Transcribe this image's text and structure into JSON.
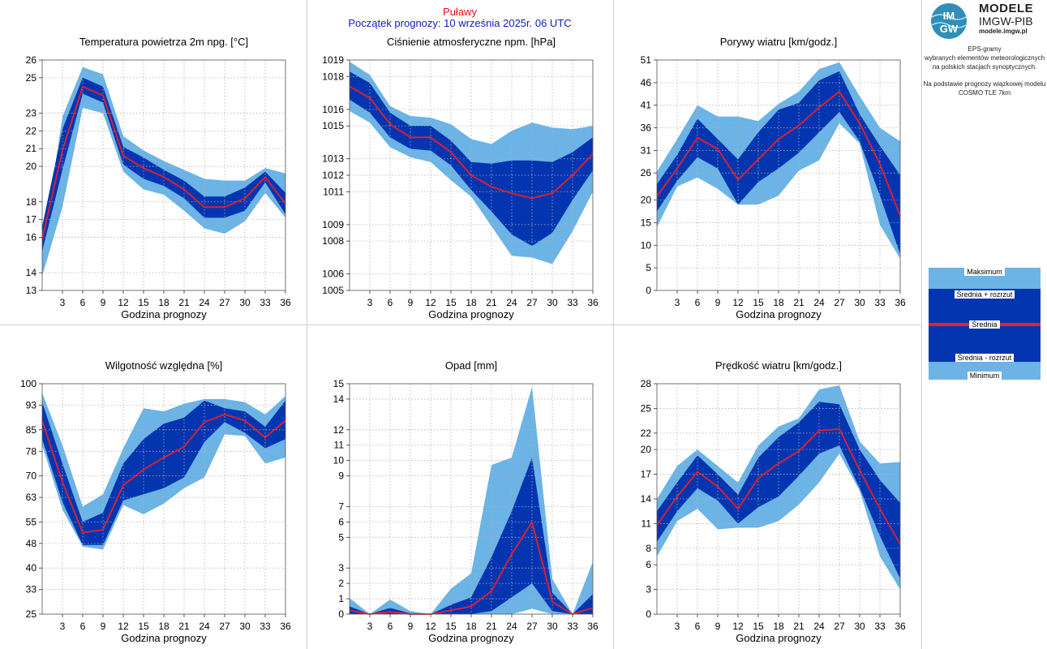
{
  "header": {
    "station": "Puławy",
    "forecast_start": "Początek prognozy: 10 września 2025r. 06 UTC"
  },
  "sidebar": {
    "logo_title": "MODELE",
    "logo_subtitle": "IMGW-PIB",
    "logo_url": "modele.imgw.pl",
    "description_lines": [
      "EPS-gramy",
      "wybranych elementów meteorologicznych",
      "na polskich stacjach  synoptycznych."
    ],
    "model_lines": [
      "Na podstawie prognozy wiązkowej modelu",
      "COSMO TLE 7km"
    ],
    "legend": {
      "maximum": "Maksimum",
      "mean_plus": "Średnia + rozrzut",
      "mean": "Średnia",
      "mean_minus": "Średnia - rozrzut",
      "minimum": "Minimum"
    }
  },
  "colors": {
    "outer_band": "#6cb3e6",
    "inner_band": "#0435b0",
    "mean_line": "#e8202a",
    "grid": "#b0b0b0",
    "frame": "#cfcfcf"
  },
  "chart_data": [
    {
      "type": "area",
      "title": "Temperatura powietrza 2m npg. [°C]",
      "xlabel": "Godzina prognozy",
      "ylim": [
        13,
        26
      ],
      "yticks": [
        13,
        14,
        16,
        17,
        18,
        20,
        21,
        22,
        23,
        25,
        26
      ],
      "xticks": [
        3,
        6,
        9,
        12,
        15,
        18,
        21,
        24,
        27,
        30,
        33,
        36
      ],
      "x": [
        0,
        3,
        6,
        9,
        12,
        15,
        18,
        21,
        24,
        27,
        30,
        33,
        36
      ],
      "series": [
        {
          "role": "max",
          "values": [
            15.2,
            22.8,
            25.6,
            25.2,
            21.7,
            20.9,
            20.3,
            19.8,
            19.3,
            19.2,
            19.2,
            19.9,
            19.6
          ]
        },
        {
          "role": "mean_plus",
          "values": [
            16.6,
            22.1,
            25.0,
            24.5,
            21.1,
            20.5,
            19.8,
            19.2,
            18.3,
            18.3,
            18.8,
            19.7,
            18.5
          ]
        },
        {
          "role": "mean",
          "values": [
            15.9,
            20.9,
            24.5,
            24.0,
            20.6,
            19.9,
            19.4,
            18.7,
            17.7,
            17.7,
            18.2,
            19.4,
            17.9
          ]
        },
        {
          "role": "mean_minus",
          "values": [
            15.2,
            19.8,
            24.1,
            23.6,
            20.1,
            19.3,
            18.9,
            18.2,
            17.1,
            17.1,
            17.5,
            19.1,
            17.3
          ]
        },
        {
          "role": "min",
          "values": [
            13.8,
            17.7,
            23.3,
            23.0,
            19.7,
            18.7,
            18.4,
            17.5,
            16.5,
            16.2,
            16.9,
            18.5,
            17.1
          ]
        }
      ]
    },
    {
      "type": "area",
      "title": "Ciśnienie atmosferyczne npm. [hPa]",
      "xlabel": "Godzina prognozy",
      "ylim": [
        1005,
        1019
      ],
      "yticks": [
        1005,
        1006,
        1008,
        1009,
        1011,
        1012,
        1013,
        1015,
        1016,
        1018,
        1019
      ],
      "xticks": [
        3,
        6,
        9,
        12,
        15,
        18,
        21,
        24,
        27,
        30,
        33,
        36
      ],
      "x": [
        0,
        3,
        6,
        9,
        12,
        15,
        18,
        21,
        24,
        27,
        30,
        33,
        36
      ],
      "series": [
        {
          "role": "max",
          "values": [
            1018.9,
            1018.1,
            1016.2,
            1015.6,
            1015.5,
            1015.1,
            1014.2,
            1013.9,
            1014.7,
            1015.2,
            1014.9,
            1014.8,
            1015.0
          ]
        },
        {
          "role": "mean_plus",
          "values": [
            1018.3,
            1017.6,
            1015.8,
            1015.0,
            1015.0,
            1014.1,
            1012.8,
            1012.7,
            1012.9,
            1012.9,
            1012.8,
            1013.4,
            1014.3
          ]
        },
        {
          "role": "mean",
          "values": [
            1017.4,
            1016.7,
            1015.1,
            1014.3,
            1014.3,
            1013.4,
            1012.0,
            1011.3,
            1010.9,
            1010.6,
            1010.9,
            1012.0,
            1013.3
          ]
        },
        {
          "role": "mean_minus",
          "values": [
            1016.6,
            1015.8,
            1014.3,
            1013.6,
            1013.5,
            1012.6,
            1011.1,
            1009.8,
            1008.4,
            1007.7,
            1008.5,
            1010.5,
            1012.3
          ]
        },
        {
          "role": "min",
          "values": [
            1015.9,
            1015.2,
            1013.7,
            1013.1,
            1012.8,
            1011.7,
            1010.7,
            1008.9,
            1007.1,
            1007.0,
            1006.6,
            1008.6,
            1011.0
          ]
        }
      ]
    },
    {
      "type": "area",
      "title": "Porywy wiatru [km/godz.]",
      "xlabel": "Godzina prognozy",
      "ylim": [
        0,
        51
      ],
      "yticks": [
        0,
        5,
        10,
        15,
        20,
        26,
        31,
        36,
        41,
        46,
        51
      ],
      "xticks": [
        3,
        6,
        9,
        12,
        15,
        18,
        21,
        24,
        27,
        30,
        33,
        36
      ],
      "x": [
        0,
        3,
        6,
        9,
        12,
        15,
        18,
        21,
        24,
        27,
        30,
        33,
        36
      ],
      "series": [
        {
          "role": "max",
          "values": [
            26.3,
            33.5,
            41.0,
            38.5,
            38.5,
            37.5,
            41.3,
            44.0,
            49.0,
            50.5,
            43.0,
            36.0,
            33.0
          ]
        },
        {
          "role": "mean_plus",
          "values": [
            23.5,
            30.0,
            38.0,
            33.5,
            29.0,
            35.0,
            40.0,
            41.5,
            46.5,
            48.5,
            39.0,
            32.0,
            25.5
          ]
        },
        {
          "role": "mean",
          "values": [
            20.8,
            27.0,
            33.8,
            31.3,
            24.5,
            29.0,
            33.5,
            36.5,
            40.5,
            44.0,
            37.0,
            28.0,
            16.5
          ]
        },
        {
          "role": "mean_minus",
          "values": [
            17.5,
            24.3,
            29.5,
            27.0,
            19.0,
            24.0,
            27.0,
            30.5,
            35.0,
            39.5,
            33.0,
            21.0,
            8.0
          ]
        },
        {
          "role": "min",
          "values": [
            14.0,
            23.0,
            25.0,
            22.5,
            19.0,
            19.0,
            21.0,
            26.5,
            28.8,
            37.0,
            32.5,
            14.5,
            7.0
          ]
        }
      ]
    },
    {
      "type": "area",
      "title": "Wilgotność względna [%]",
      "xlabel": "Godzina prognozy",
      "ylim": [
        25,
        100
      ],
      "yticks": [
        25,
        33,
        40,
        48,
        55,
        63,
        70,
        78,
        85,
        93,
        100
      ],
      "xticks": [
        3,
        6,
        9,
        12,
        15,
        18,
        21,
        24,
        27,
        30,
        33,
        36
      ],
      "x": [
        0,
        3,
        6,
        9,
        12,
        15,
        18,
        21,
        24,
        27,
        30,
        33,
        36
      ],
      "series": [
        {
          "role": "max",
          "values": [
            97.0,
            80.0,
            60.0,
            64.0,
            79.0,
            92.0,
            91.0,
            93.5,
            95.0,
            95.0,
            94.0,
            90.0,
            96.0
          ]
        },
        {
          "role": "mean_plus",
          "values": [
            94.0,
            74.0,
            55.0,
            58.0,
            74.0,
            82.0,
            87.0,
            89.0,
            94.5,
            92.0,
            91.0,
            86.0,
            94.5
          ]
        },
        {
          "role": "mean",
          "values": [
            88.0,
            68.0,
            51.5,
            52.5,
            67.0,
            72.0,
            76.0,
            79.5,
            87.5,
            90.0,
            88.0,
            82.5,
            88.0
          ]
        },
        {
          "role": "mean_minus",
          "values": [
            82.0,
            61.5,
            47.5,
            47.5,
            62.0,
            64.0,
            66.0,
            69.5,
            81.0,
            87.5,
            84.0,
            79.0,
            82.0
          ]
        },
        {
          "role": "min",
          "values": [
            80.0,
            59.0,
            47.0,
            46.0,
            60.5,
            57.5,
            61.0,
            66.0,
            69.5,
            83.5,
            83.0,
            74.0,
            76.0
          ]
        }
      ]
    },
    {
      "type": "area",
      "title": "Opad [mm]",
      "xlabel": "Godzina prognozy",
      "ylim": [
        0,
        15
      ],
      "yticks": [
        0,
        1,
        2,
        3,
        5,
        6,
        7,
        9,
        10,
        11,
        12,
        14,
        15
      ],
      "yticklabels": [
        "0",
        "1",
        "2",
        "3",
        "5",
        "6",
        "7",
        "9",
        "10",
        "11",
        "12",
        "14",
        "15"
      ],
      "xticks": [
        3,
        6,
        9,
        12,
        15,
        18,
        21,
        24,
        27,
        30,
        33,
        36
      ],
      "x": [
        0,
        3,
        6,
        9,
        12,
        15,
        18,
        21,
        24,
        27,
        30,
        33,
        36
      ],
      "series": [
        {
          "role": "max",
          "values": [
            1.05,
            0.0,
            0.95,
            0.2,
            0.0,
            1.65,
            2.65,
            9.7,
            10.2,
            14.8,
            2.3,
            0.0,
            3.4
          ]
        },
        {
          "role": "mean_plus",
          "values": [
            0.5,
            0.0,
            0.4,
            0.05,
            0.0,
            0.6,
            1.1,
            3.7,
            6.7,
            10.2,
            1.4,
            0.0,
            1.3
          ]
        },
        {
          "role": "mean",
          "values": [
            0.25,
            0.0,
            0.15,
            0.0,
            0.0,
            0.25,
            0.5,
            1.5,
            3.9,
            6.0,
            0.8,
            0.0,
            0.4
          ]
        },
        {
          "role": "mean_minus",
          "values": [
            0.0,
            0.0,
            0.0,
            0.0,
            0.0,
            0.0,
            0.0,
            0.2,
            1.1,
            2.0,
            0.2,
            0.0,
            0.0
          ]
        },
        {
          "role": "min",
          "values": [
            0.0,
            0.0,
            0.0,
            0.0,
            0.0,
            0.0,
            0.0,
            0.0,
            0.0,
            0.35,
            0.0,
            0.0,
            0.0
          ]
        }
      ]
    },
    {
      "type": "area",
      "title": "Prędkość wiatru [km/godz.]",
      "xlabel": "Godzina prognozy",
      "ylim": [
        0,
        28
      ],
      "yticks": [
        0,
        3,
        6,
        8,
        11,
        14,
        17,
        20,
        22,
        25,
        28
      ],
      "xticks": [
        3,
        6,
        9,
        12,
        15,
        18,
        21,
        24,
        27,
        30,
        33,
        36
      ],
      "x": [
        0,
        3,
        6,
        9,
        12,
        15,
        18,
        21,
        24,
        27,
        30,
        33,
        36
      ],
      "series": [
        {
          "role": "max",
          "values": [
            14.0,
            18.0,
            20.0,
            18.0,
            16.0,
            20.5,
            22.8,
            23.8,
            27.3,
            27.8,
            21.0,
            18.3,
            18.5
          ]
        },
        {
          "role": "mean_plus",
          "values": [
            12.5,
            16.0,
            19.3,
            17.0,
            14.5,
            19.0,
            21.5,
            23.3,
            25.8,
            25.5,
            20.0,
            16.3,
            13.5
          ]
        },
        {
          "role": "mean",
          "values": [
            10.8,
            14.3,
            17.3,
            15.5,
            12.8,
            16.5,
            18.3,
            19.8,
            22.3,
            22.5,
            17.5,
            12.8,
            8.5
          ]
        },
        {
          "role": "mean_minus",
          "values": [
            8.8,
            12.5,
            15.3,
            13.8,
            11.0,
            13.0,
            14.3,
            16.8,
            19.5,
            20.5,
            15.3,
            9.5,
            4.3
          ]
        },
        {
          "role": "min",
          "values": [
            7.0,
            11.3,
            12.8,
            10.3,
            10.5,
            10.5,
            11.3,
            13.3,
            16.0,
            19.5,
            15.0,
            7.0,
            3.0
          ]
        }
      ]
    }
  ]
}
